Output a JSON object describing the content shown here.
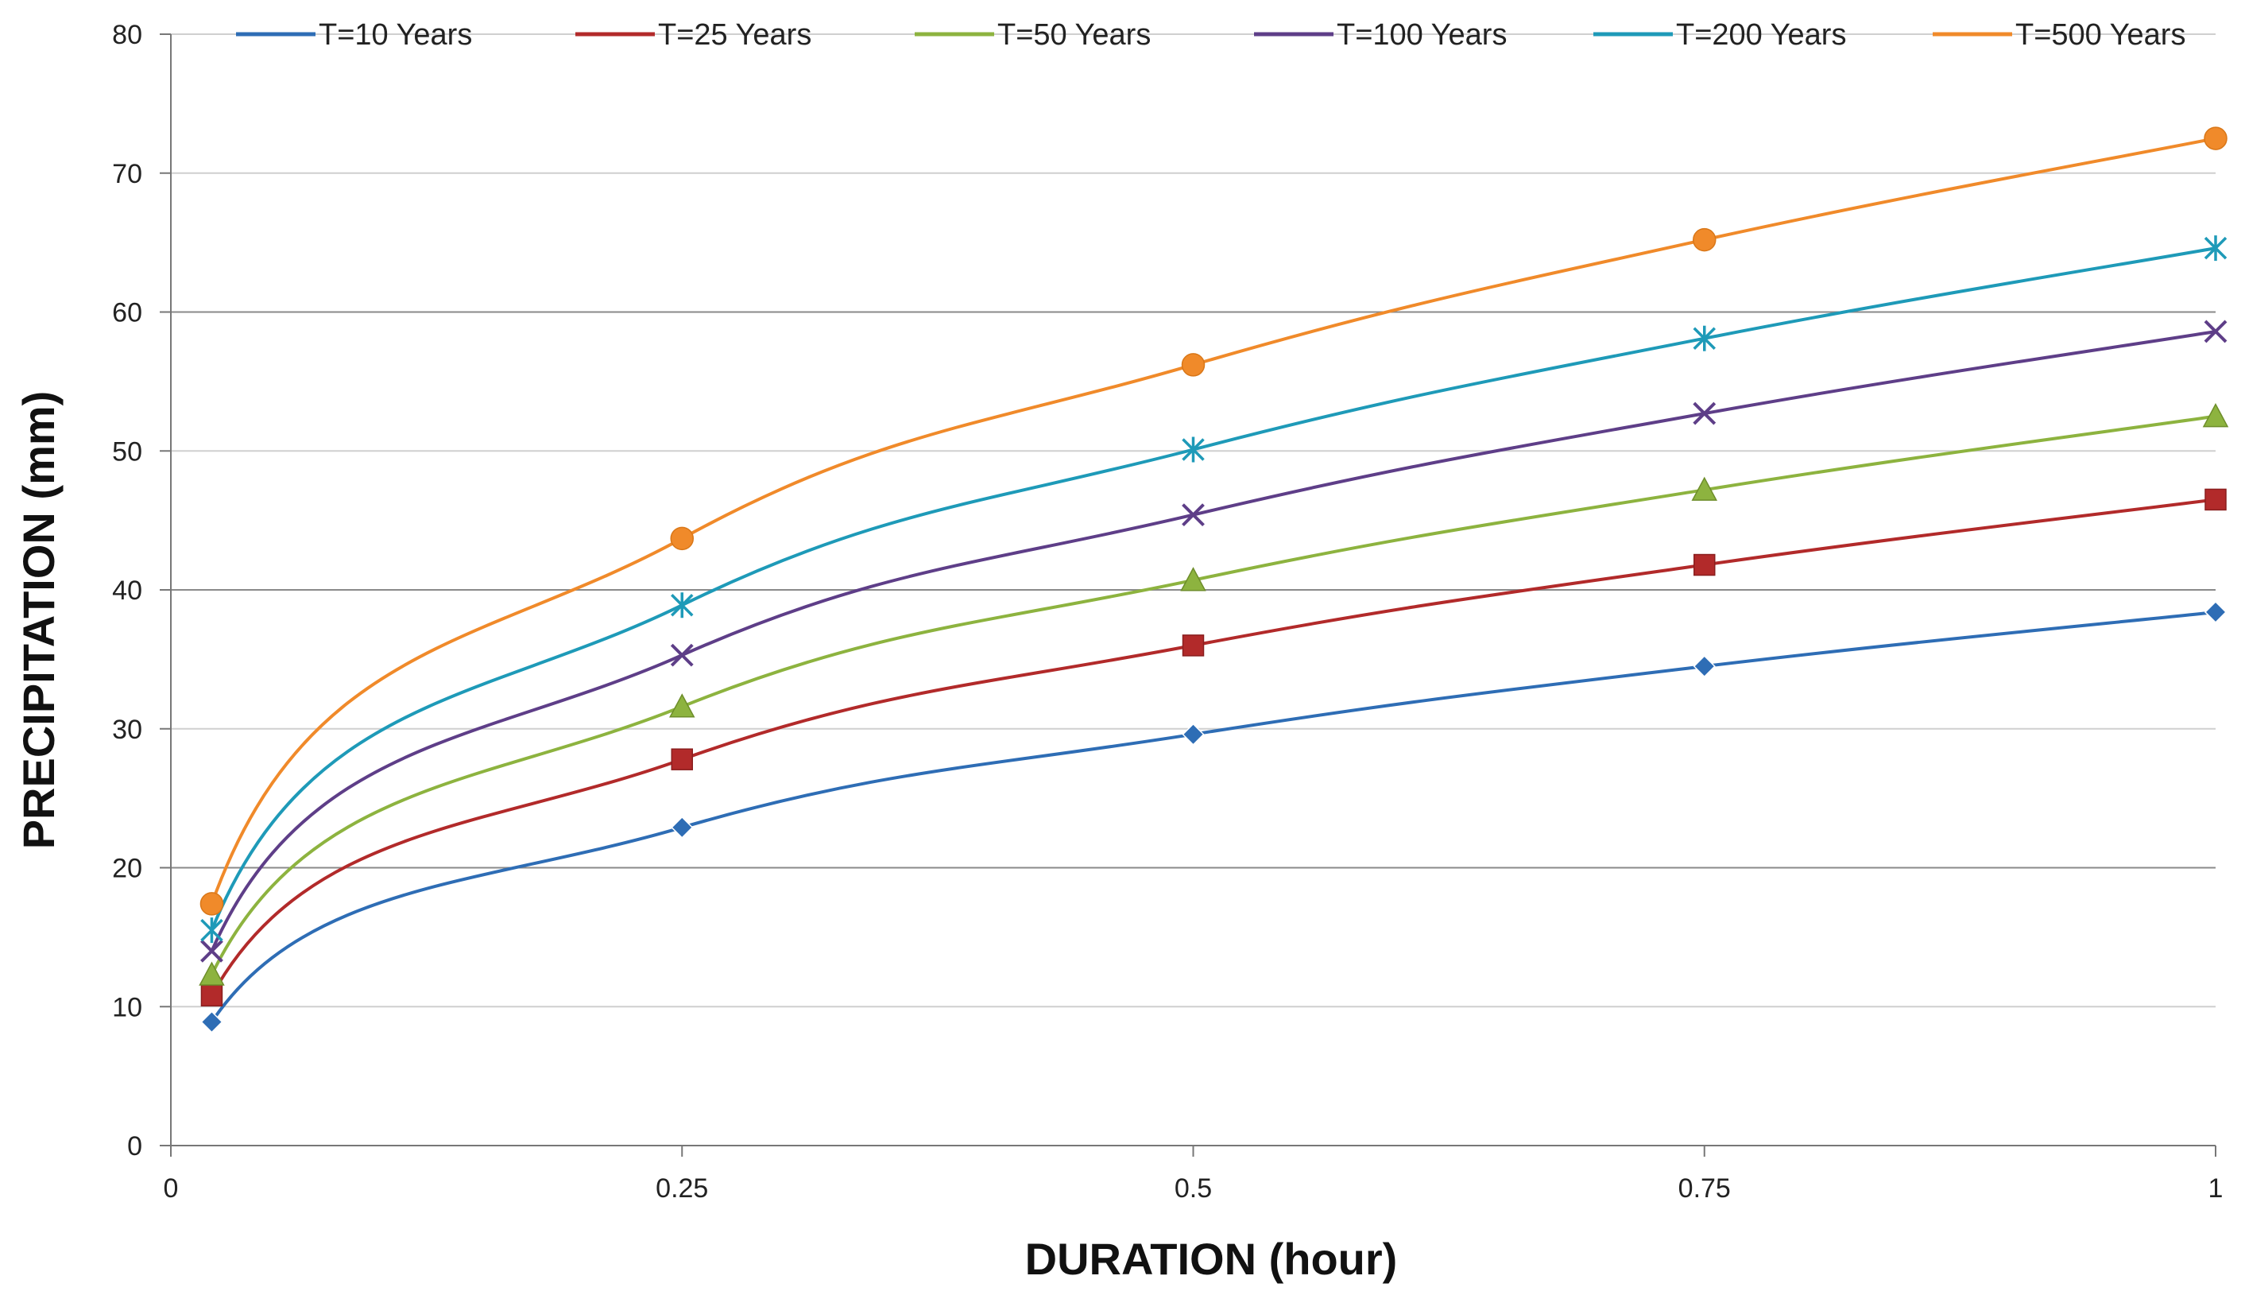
{
  "chart_data": {
    "type": "line",
    "title": "",
    "xlabel": "DURATION (hour)",
    "ylabel": "PRECIPITATION (mm)",
    "xlim": [
      0,
      1
    ],
    "ylim": [
      0,
      80
    ],
    "xticks": [
      0,
      0.25,
      0.5,
      0.75,
      1
    ],
    "xtick_labels": [
      "0",
      "0.25",
      "0.5",
      "0.75",
      "1"
    ],
    "yticks": [
      0,
      10,
      20,
      30,
      40,
      50,
      60,
      70,
      80
    ],
    "ytick_labels": [
      "0",
      "10",
      "20",
      "30",
      "40",
      "50",
      "60",
      "70",
      "80"
    ],
    "grid": true,
    "legend_position": "top",
    "x": [
      0.02,
      0.25,
      0.5,
      0.75,
      1
    ],
    "series": [
      {
        "name": "T=10 Years",
        "color": "#2E6DB5",
        "marker": "diamond",
        "values": [
          8.9,
          22.9,
          29.6,
          34.5,
          38.4
        ]
      },
      {
        "name": "T=25 Years",
        "color": "#B22A2A",
        "marker": "square",
        "values": [
          10.8,
          27.8,
          36.0,
          41.8,
          46.5
        ]
      },
      {
        "name": "T=50 Years",
        "color": "#8DB33F",
        "marker": "triangle",
        "values": [
          12.3,
          31.6,
          40.7,
          47.2,
          52.5
        ]
      },
      {
        "name": "T=100 Years",
        "color": "#5E3E88",
        "marker": "x",
        "values": [
          14.0,
          35.3,
          45.4,
          52.7,
          58.6
        ]
      },
      {
        "name": "T=200 Years",
        "color": "#1E9AB8",
        "marker": "star",
        "values": [
          15.5,
          38.9,
          50.1,
          58.1,
          64.6
        ]
      },
      {
        "name": "T=500 Years",
        "color": "#F08A2A",
        "marker": "circle",
        "values": [
          17.4,
          43.7,
          56.2,
          65.2,
          72.5
        ]
      }
    ]
  }
}
